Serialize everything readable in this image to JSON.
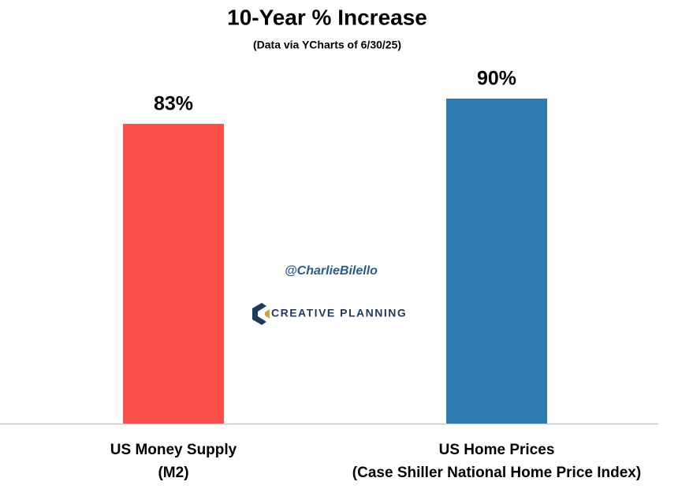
{
  "chart_data": {
    "type": "bar",
    "title": "10-Year % Increase",
    "subtitle": "(Data via YCharts of 6/30/25)",
    "categories": [
      [
        "US Money Supply",
        "(M2)"
      ],
      [
        "US Home Prices",
        "(Case Shiller National Home Price Index)"
      ]
    ],
    "values": [
      83,
      90
    ],
    "value_labels": [
      "83%",
      "90%"
    ],
    "colors": [
      "#f9514a",
      "#2e7bb0"
    ],
    "annotations": [
      "@CharlieBilello",
      "CREATIVE PLANNING"
    ]
  }
}
